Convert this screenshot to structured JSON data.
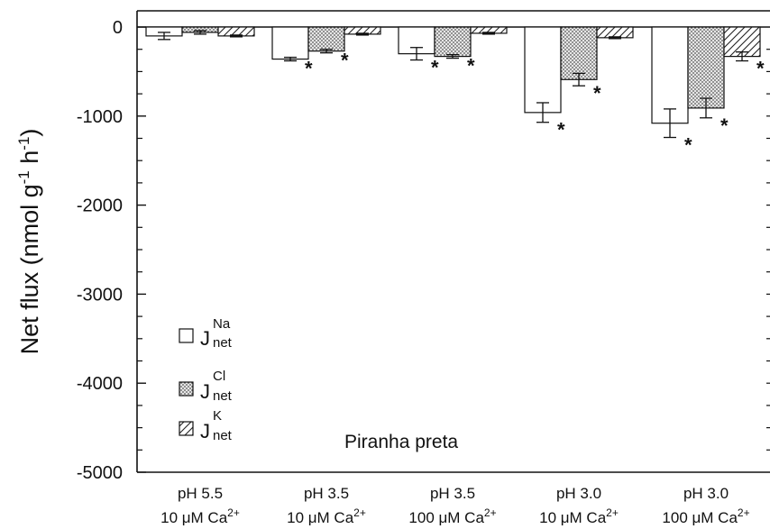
{
  "chart_data": {
    "type": "bar",
    "ylabel": "Net flux (nmol g",
    "ylabel_sup1": "-1",
    "ylabel_mid": " h",
    "ylabel_sup2": "-1",
    "ylabel_end": ")",
    "ylim": [
      -5000,
      0
    ],
    "yticks": [
      0,
      -1000,
      -2000,
      -3000,
      -4000,
      -5000
    ],
    "ytick_labels": [
      "0",
      "-1000",
      "-2000",
      "-3000",
      "-4000",
      "-5000"
    ],
    "categories": [
      {
        "line1": "pH 5.5",
        "line2": "10 μM Ca",
        "sup": "2+"
      },
      {
        "line1": "pH 3.5",
        "line2": "10 μM Ca",
        "sup": "2+"
      },
      {
        "line1": "pH 3.5",
        "line2": "100 μM Ca",
        "sup": "2+"
      },
      {
        "line1": "pH 3.0",
        "line2": "10 μM Ca",
        "sup": "2+"
      },
      {
        "line1": "pH 3.0",
        "line2": "100 μM Ca",
        "sup": "2+"
      }
    ],
    "series": [
      {
        "name": "J",
        "sub": "net",
        "sup": "Na",
        "pattern": "open",
        "values": [
          -100,
          -360,
          -300,
          -960,
          -1080
        ],
        "errors": [
          40,
          20,
          70,
          110,
          160
        ],
        "significant": [
          false,
          true,
          true,
          true,
          true
        ]
      },
      {
        "name": "J",
        "sub": "net",
        "sup": "Cl",
        "pattern": "stippled",
        "values": [
          -60,
          -270,
          -330,
          -590,
          -910
        ],
        "errors": [
          20,
          20,
          20,
          70,
          110
        ],
        "significant": [
          false,
          true,
          true,
          true,
          true
        ]
      },
      {
        "name": "J",
        "sub": "net",
        "sup": "K",
        "pattern": "hatched",
        "values": [
          -100,
          -80,
          -70,
          -120,
          -330
        ],
        "errors": [
          10,
          10,
          10,
          10,
          50
        ],
        "significant": [
          false,
          false,
          false,
          false,
          true
        ]
      }
    ],
    "significance_marker": "*",
    "annotation": "Piranha preta",
    "legend_position": "bottom-left",
    "grid": false
  }
}
